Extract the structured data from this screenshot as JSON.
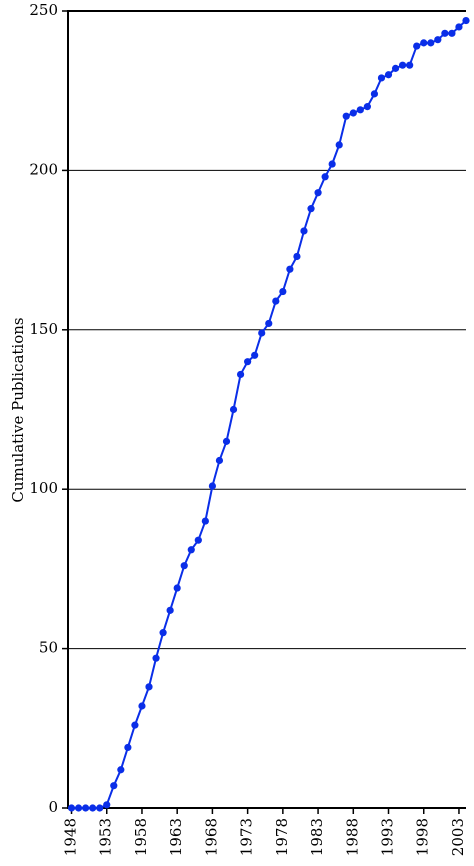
{
  "chart_data": {
    "type": "line",
    "y_label": "Cumulative Publications",
    "x": [
      1948,
      1949,
      1950,
      1951,
      1952,
      1953,
      1954,
      1955,
      1956,
      1957,
      1958,
      1959,
      1960,
      1961,
      1962,
      1963,
      1964,
      1965,
      1966,
      1967,
      1968,
      1969,
      1970,
      1971,
      1972,
      1973,
      1974,
      1975,
      1976,
      1977,
      1978,
      1979,
      1980,
      1981,
      1982,
      1983,
      1984,
      1985,
      1986,
      1987,
      1988,
      1989,
      1990,
      1991,
      1992,
      1993,
      1994,
      1995,
      1996,
      1997,
      1998,
      1999,
      2000,
      2001,
      2002,
      2003,
      2004
    ],
    "series": [
      {
        "color": "#0a2ee8",
        "values": [
          0,
          0,
          0,
          0,
          0,
          1,
          7,
          12,
          19,
          26,
          32,
          38,
          47,
          55,
          62,
          69,
          76,
          81,
          84,
          90,
          101,
          109,
          115,
          125,
          136,
          140,
          142,
          149,
          152,
          159,
          162,
          169,
          173,
          181,
          188,
          193,
          198,
          202,
          208,
          217,
          218,
          219,
          220,
          224,
          229,
          230,
          232,
          233,
          233,
          239,
          240,
          240,
          241,
          243,
          243,
          245,
          247
        ]
      }
    ],
    "xlim": [
      1947.5,
      2004
    ],
    "xticks": [
      1948,
      1953,
      1958,
      1963,
      1968,
      1973,
      1978,
      1983,
      1988,
      1993,
      1998,
      2003
    ],
    "ylim": [
      0,
      250
    ],
    "yticks": [
      0,
      50,
      100,
      150,
      200,
      250
    ],
    "grid": true
  }
}
